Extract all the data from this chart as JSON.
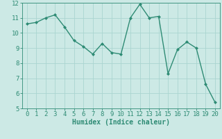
{
  "x": [
    0,
    1,
    2,
    3,
    4,
    5,
    6,
    7,
    8,
    9,
    10,
    11,
    12,
    13,
    14,
    15,
    16,
    17,
    18,
    19,
    20
  ],
  "y": [
    10.6,
    10.7,
    11.0,
    11.2,
    10.4,
    9.5,
    9.1,
    8.6,
    9.3,
    8.7,
    8.6,
    11.0,
    11.9,
    11.0,
    11.1,
    7.3,
    8.9,
    9.4,
    9.0,
    6.6,
    5.4
  ],
  "line_color": "#2e8b74",
  "marker": "D",
  "marker_size": 2.0,
  "line_width": 1.0,
  "bg_color": "#cce9e5",
  "grid_color": "#aad5d0",
  "xlabel": "Humidex (Indice chaleur)",
  "xlim": [
    -0.5,
    20.5
  ],
  "ylim": [
    5,
    12
  ],
  "yticks": [
    5,
    6,
    7,
    8,
    9,
    10,
    11,
    12
  ],
  "xticks": [
    0,
    1,
    2,
    3,
    4,
    5,
    6,
    7,
    8,
    9,
    10,
    11,
    12,
    13,
    14,
    15,
    16,
    17,
    18,
    19,
    20
  ],
  "xlabel_fontsize": 7,
  "tick_fontsize": 6.5
}
